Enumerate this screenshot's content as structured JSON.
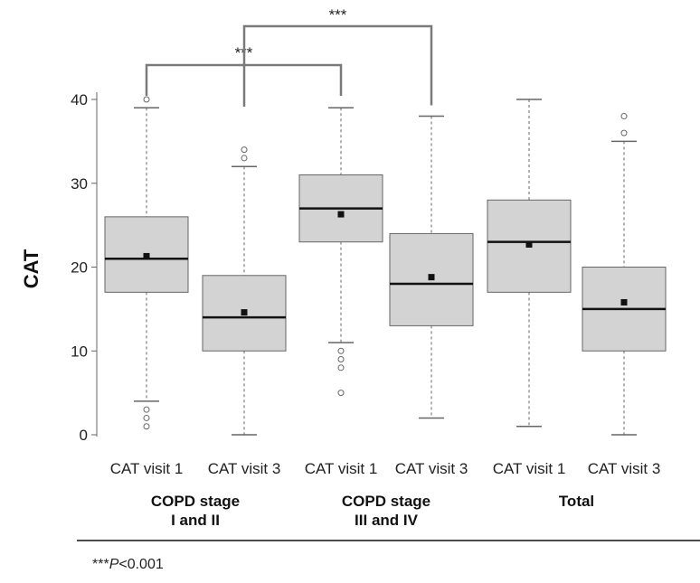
{
  "chart_data": {
    "type": "box",
    "ylabel": "CAT",
    "xlabel": "",
    "title": "",
    "ylim": [
      0,
      40
    ],
    "yticks": [
      0,
      10,
      20,
      30,
      40
    ],
    "grid": false,
    "categories": [
      "CAT visit 1",
      "CAT visit 3",
      "CAT visit 1",
      "CAT visit 3",
      "CAT visit 1",
      "CAT visit 3"
    ],
    "groups": [
      {
        "label_lines": [
          "COPD stage",
          "I and II"
        ],
        "members": [
          0,
          1
        ]
      },
      {
        "label_lines": [
          "COPD stage",
          "III and IV"
        ],
        "members": [
          2,
          3
        ]
      },
      {
        "label_lines": [
          "Total"
        ],
        "members": [
          4,
          5
        ]
      }
    ],
    "boxes": [
      {
        "whisker_low": 4,
        "q1": 17,
        "median": 21,
        "q3": 26,
        "whisker_high": 39,
        "mean": 21.3,
        "outliers": [
          40,
          3,
          2,
          1
        ]
      },
      {
        "whisker_low": 0,
        "q1": 10,
        "median": 14,
        "q3": 19,
        "whisker_high": 32,
        "mean": 14.6,
        "outliers": [
          34,
          33
        ]
      },
      {
        "whisker_low": 11,
        "q1": 23,
        "median": 27,
        "q3": 31,
        "whisker_high": 39,
        "mean": 26.3,
        "outliers": [
          10,
          9,
          8,
          5
        ]
      },
      {
        "whisker_low": 2,
        "q1": 13,
        "median": 18,
        "q3": 24,
        "whisker_high": 38,
        "mean": 18.8,
        "outliers": []
      },
      {
        "whisker_low": 1,
        "q1": 17,
        "median": 23,
        "q3": 28,
        "whisker_high": 40,
        "mean": 22.7,
        "outliers": []
      },
      {
        "whisker_low": 0,
        "q1": 10,
        "median": 15,
        "q3": 20,
        "whisker_high": 35,
        "mean": 15.8,
        "outliers": [
          38,
          36
        ]
      }
    ],
    "significance": [
      {
        "from": 0,
        "to": 2,
        "label": "***"
      },
      {
        "from": 1,
        "to": 3,
        "label": "***"
      }
    ],
    "box_fill": "#d3d3d3",
    "line_color": "#666666"
  },
  "footnote": {
    "stars": "***",
    "p": "P",
    "text": "<0.001"
  }
}
